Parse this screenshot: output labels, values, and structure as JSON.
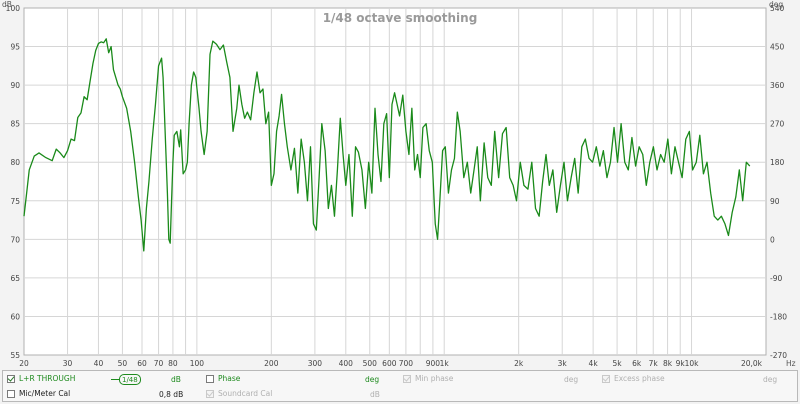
{
  "chart_data": {
    "type": "line",
    "title": "1/48 octave smoothing",
    "left_axis_unit": "dB",
    "right_axis_unit": "deg",
    "x_unit": "Hz",
    "x_scale": "log",
    "xlim": [
      20,
      20000
    ],
    "ylim": [
      55,
      100
    ],
    "y2lim": [
      -270,
      540
    ],
    "x_ticks": [
      {
        "v": 20,
        "label": "20"
      },
      {
        "v": 30,
        "label": "30"
      },
      {
        "v": 40,
        "label": "40"
      },
      {
        "v": 50,
        "label": "50"
      },
      {
        "v": 60,
        "label": "60"
      },
      {
        "v": 70,
        "label": "70"
      },
      {
        "v": 80,
        "label": "80"
      },
      {
        "v": 100,
        "label": "100"
      },
      {
        "v": 200,
        "label": "200"
      },
      {
        "v": 300,
        "label": "300"
      },
      {
        "v": 400,
        "label": "400"
      },
      {
        "v": 500,
        "label": "500"
      },
      {
        "v": 600,
        "label": "600"
      },
      {
        "v": 700,
        "label": "700"
      },
      {
        "v": 900,
        "label": "900"
      },
      {
        "v": 1000,
        "label": "1k"
      },
      {
        "v": 2000,
        "label": "2k"
      },
      {
        "v": 3000,
        "label": "3k"
      },
      {
        "v": 4000,
        "label": "4k"
      },
      {
        "v": 5000,
        "label": "5k"
      },
      {
        "v": 6000,
        "label": "6k"
      },
      {
        "v": 7000,
        "label": "7k"
      },
      {
        "v": 8000,
        "label": "8k"
      },
      {
        "v": 9000,
        "label": "9k"
      },
      {
        "v": 10000,
        "label": "10k"
      },
      {
        "v": 20000,
        "label": "20,0k"
      }
    ],
    "y_ticks": [
      55,
      60,
      65,
      70,
      75,
      80,
      85,
      90,
      95,
      100
    ],
    "y2_ticks": [
      -270,
      -180,
      -90,
      0,
      90,
      180,
      270,
      360,
      450,
      540
    ],
    "grid": true,
    "series": [
      {
        "name": "L+R THROUGH",
        "color": "#1a8a1a",
        "points": [
          [
            20,
            73
          ],
          [
            20.5,
            76
          ],
          [
            21,
            79
          ],
          [
            22,
            80.8
          ],
          [
            23,
            81.2
          ],
          [
            24.5,
            80.6
          ],
          [
            26,
            80.2
          ],
          [
            27,
            81.7
          ],
          [
            28,
            81.2
          ],
          [
            29,
            80.6
          ],
          [
            30,
            81.5
          ],
          [
            31,
            83
          ],
          [
            32,
            82.8
          ],
          [
            33,
            85.8
          ],
          [
            34,
            86.4
          ],
          [
            35,
            88.5
          ],
          [
            36,
            88.1
          ],
          [
            37,
            90.5
          ],
          [
            38,
            92.8
          ],
          [
            39,
            94.5
          ],
          [
            40,
            95.4
          ],
          [
            41,
            95.6
          ],
          [
            42,
            95.5
          ],
          [
            43,
            96
          ],
          [
            44,
            94.2
          ],
          [
            45,
            95
          ],
          [
            46,
            92
          ],
          [
            47,
            91
          ],
          [
            48,
            90
          ],
          [
            49,
            89.5
          ],
          [
            50,
            88.5
          ],
          [
            52,
            87
          ],
          [
            54,
            84
          ],
          [
            56,
            80
          ],
          [
            58,
            75.5
          ],
          [
            59.5,
            72.5
          ],
          [
            61,
            68.5
          ],
          [
            62.5,
            74
          ],
          [
            64,
            77.5
          ],
          [
            66,
            83
          ],
          [
            68,
            87.5
          ],
          [
            70,
            92.5
          ],
          [
            72,
            93.5
          ],
          [
            73,
            91
          ],
          [
            74,
            86
          ],
          [
            75,
            81
          ],
          [
            76,
            76
          ],
          [
            77,
            70
          ],
          [
            78,
            69.5
          ],
          [
            79,
            75
          ],
          [
            80,
            80
          ],
          [
            81,
            83.5
          ],
          [
            83,
            84
          ],
          [
            85,
            82
          ],
          [
            86,
            84.2
          ],
          [
            88,
            78.5
          ],
          [
            90,
            79
          ],
          [
            91.5,
            80
          ],
          [
            93,
            85
          ],
          [
            95,
            90
          ],
          [
            97,
            91.7
          ],
          [
            99,
            91
          ],
          [
            102,
            87
          ],
          [
            104,
            84
          ],
          [
            107,
            81
          ],
          [
            110,
            84
          ],
          [
            113,
            94
          ],
          [
            116,
            95.7
          ],
          [
            120,
            95.3
          ],
          [
            124,
            94.6
          ],
          [
            128,
            95.2
          ],
          [
            132,
            93
          ],
          [
            136,
            91
          ],
          [
            140,
            84
          ],
          [
            145,
            87
          ],
          [
            148,
            90
          ],
          [
            152,
            87.5
          ],
          [
            156,
            85.7
          ],
          [
            160,
            86.5
          ],
          [
            165,
            85.5
          ],
          [
            170,
            89
          ],
          [
            175,
            91.7
          ],
          [
            180,
            89
          ],
          [
            185,
            89.5
          ],
          [
            190,
            85
          ],
          [
            195,
            86.5
          ],
          [
            200,
            77
          ],
          [
            205,
            78.5
          ],
          [
            210,
            84
          ],
          [
            215,
            86
          ],
          [
            220,
            88.8
          ],
          [
            226,
            85
          ],
          [
            232,
            82
          ],
          [
            240,
            79
          ],
          [
            248,
            81.8
          ],
          [
            256,
            76
          ],
          [
            264,
            83
          ],
          [
            272,
            80
          ],
          [
            280,
            75
          ],
          [
            288,
            82
          ],
          [
            296,
            72
          ],
          [
            304,
            71.2
          ],
          [
            312,
            78
          ],
          [
            320,
            85
          ],
          [
            330,
            81.5
          ],
          [
            340,
            74
          ],
          [
            350,
            77
          ],
          [
            360,
            73
          ],
          [
            370,
            79
          ],
          [
            380,
            85.7
          ],
          [
            390,
            81
          ],
          [
            400,
            77
          ],
          [
            412,
            81
          ],
          [
            425,
            73
          ],
          [
            438,
            82
          ],
          [
            450,
            81.3
          ],
          [
            465,
            79
          ],
          [
            480,
            74
          ],
          [
            495,
            80
          ],
          [
            510,
            76
          ],
          [
            525,
            87
          ],
          [
            540,
            81
          ],
          [
            555,
            77.5
          ],
          [
            570,
            85
          ],
          [
            585,
            86.3
          ],
          [
            600,
            78
          ],
          [
            615,
            87.5
          ],
          [
            630,
            89
          ],
          [
            645,
            87.5
          ],
          [
            660,
            86
          ],
          [
            680,
            88.7
          ],
          [
            700,
            84
          ],
          [
            720,
            81
          ],
          [
            740,
            87
          ],
          [
            760,
            79
          ],
          [
            780,
            81
          ],
          [
            800,
            78
          ],
          [
            820,
            84.5
          ],
          [
            845,
            85
          ],
          [
            870,
            81.5
          ],
          [
            895,
            80
          ],
          [
            920,
            72
          ],
          [
            940,
            70
          ],
          [
            960,
            75
          ],
          [
            985,
            81.5
          ],
          [
            1010,
            82
          ],
          [
            1040,
            76
          ],
          [
            1070,
            79
          ],
          [
            1100,
            80.5
          ],
          [
            1130,
            86.5
          ],
          [
            1160,
            84
          ],
          [
            1200,
            78
          ],
          [
            1240,
            80
          ],
          [
            1280,
            76
          ],
          [
            1320,
            79
          ],
          [
            1360,
            82
          ],
          [
            1400,
            75
          ],
          [
            1450,
            82.5
          ],
          [
            1500,
            78
          ],
          [
            1550,
            77
          ],
          [
            1600,
            84
          ],
          [
            1660,
            78
          ],
          [
            1720,
            83.7
          ],
          [
            1780,
            84.5
          ],
          [
            1840,
            78
          ],
          [
            1900,
            77
          ],
          [
            1960,
            75
          ],
          [
            2030,
            80
          ],
          [
            2100,
            77
          ],
          [
            2180,
            76.5
          ],
          [
            2260,
            80
          ],
          [
            2340,
            74
          ],
          [
            2420,
            73
          ],
          [
            2500,
            77.5
          ],
          [
            2580,
            81
          ],
          [
            2660,
            77
          ],
          [
            2750,
            79
          ],
          [
            2850,
            73.5
          ],
          [
            2950,
            77
          ],
          [
            3050,
            80
          ],
          [
            3150,
            75
          ],
          [
            3260,
            78
          ],
          [
            3370,
            80.5
          ],
          [
            3480,
            76
          ],
          [
            3600,
            82
          ],
          [
            3720,
            83
          ],
          [
            3850,
            80.5
          ],
          [
            3980,
            80
          ],
          [
            4120,
            82
          ],
          [
            4260,
            79.5
          ],
          [
            4400,
            81.5
          ],
          [
            4550,
            78
          ],
          [
            4700,
            80
          ],
          [
            4860,
            84.5
          ],
          [
            5020,
            80
          ],
          [
            5190,
            85
          ],
          [
            5370,
            80
          ],
          [
            5550,
            79
          ],
          [
            5740,
            83.2
          ],
          [
            5940,
            79.5
          ],
          [
            6140,
            82
          ],
          [
            6350,
            81
          ],
          [
            6560,
            77
          ],
          [
            6780,
            80
          ],
          [
            7010,
            82
          ],
          [
            7250,
            79
          ],
          [
            7500,
            81
          ],
          [
            7750,
            80
          ],
          [
            8020,
            83
          ],
          [
            8290,
            78.5
          ],
          [
            8570,
            82
          ],
          [
            8860,
            80
          ],
          [
            9160,
            78
          ],
          [
            9480,
            83
          ],
          [
            9800,
            84
          ],
          [
            10100,
            79
          ],
          [
            10450,
            80
          ],
          [
            10800,
            83.5
          ],
          [
            11170,
            78.5
          ],
          [
            11550,
            80
          ],
          [
            11950,
            76
          ],
          [
            12350,
            73
          ],
          [
            12770,
            72.5
          ],
          [
            13200,
            73
          ],
          [
            13650,
            72
          ],
          [
            14100,
            70.5
          ],
          [
            14600,
            73.5
          ],
          [
            15100,
            75.5
          ],
          [
            15600,
            79
          ],
          [
            16100,
            75
          ],
          [
            16650,
            80
          ],
          [
            17200,
            79.5
          ]
        ]
      }
    ]
  },
  "legend": {
    "row1": {
      "series_label": "L+R THROUGH",
      "smoothing_label": "1/48",
      "unit_db": "dB",
      "phase_label": "Phase",
      "phase_unit": "deg",
      "min_phase_label": "Min phase",
      "min_phase_unit": "deg",
      "excess_phase_label": "Excess phase",
      "excess_phase_unit": "deg"
    },
    "row2": {
      "cal_label": "Mic/Meter Cal",
      "cal_value": "0,8 dB",
      "soundcard_label": "Soundcard Cal",
      "soundcard_unit": "dB"
    },
    "colors": {
      "accent": "#1e8a1e",
      "disabled": "#b0b0b0"
    }
  }
}
